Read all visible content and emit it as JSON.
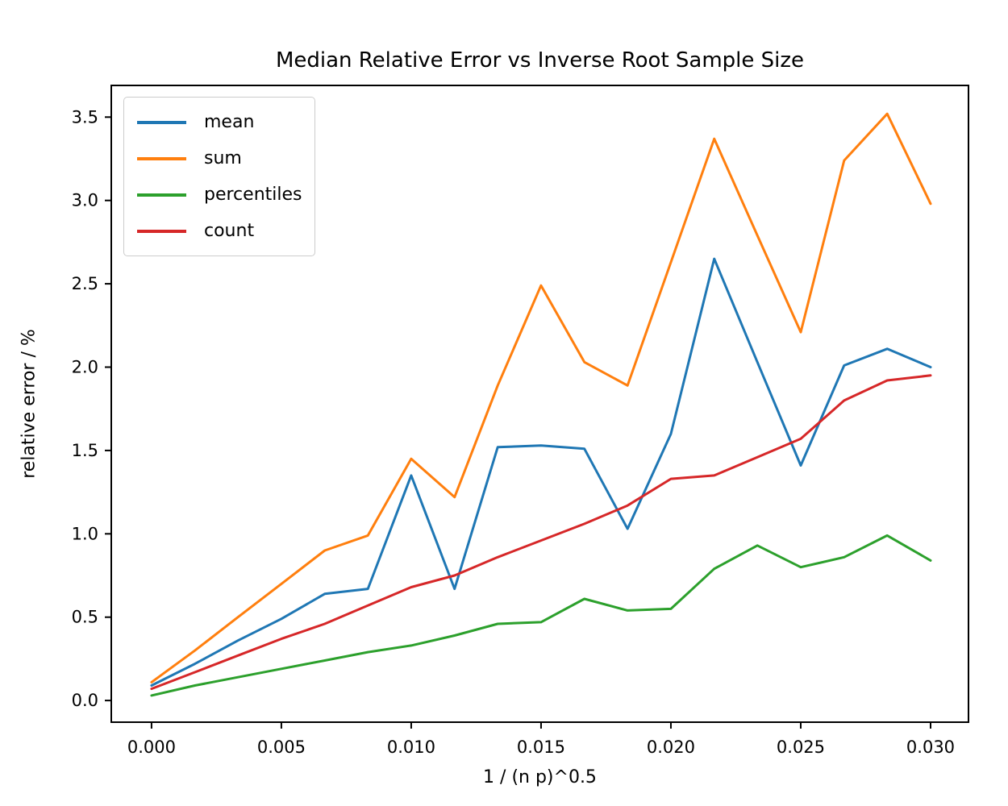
{
  "chart_data": {
    "type": "line",
    "title": "Median Relative Error vs Inverse Root Sample Size",
    "xlabel": "1 / (n p)^0.5",
    "ylabel": "relative error / %",
    "grid": false,
    "legend_position": "upper left",
    "xlim": [
      -0.00155,
      0.03146
    ],
    "ylim": [
      -0.13,
      3.69
    ],
    "xtick_values": [
      0.0,
      0.005,
      0.01,
      0.015,
      0.02,
      0.025,
      0.03
    ],
    "xtick_labels": [
      "0.000",
      "0.005",
      "0.010",
      "0.015",
      "0.020",
      "0.025",
      "0.030"
    ],
    "ytick_values": [
      0.0,
      0.5,
      1.0,
      1.5,
      2.0,
      2.5,
      3.0,
      3.5
    ],
    "ytick_labels": [
      "0.0",
      "0.5",
      "1.0",
      "1.5",
      "2.0",
      "2.5",
      "3.0",
      "3.5"
    ],
    "x": [
      0.0,
      0.00167,
      0.00333,
      0.005,
      0.00667,
      0.00833,
      0.01,
      0.01167,
      0.01333,
      0.015,
      0.01667,
      0.01833,
      0.02,
      0.02167,
      0.02333,
      0.025,
      0.02667,
      0.02833,
      0.03
    ],
    "series": [
      {
        "name": "mean",
        "color": "#1f77b4",
        "values": [
          0.09,
          0.22,
          0.36,
          0.49,
          0.64,
          0.67,
          1.35,
          0.67,
          1.52,
          1.53,
          1.51,
          1.03,
          1.6,
          2.65,
          2.03,
          1.41,
          2.01,
          2.11,
          2.0
        ]
      },
      {
        "name": "sum",
        "color": "#ff7f0e",
        "values": [
          0.11,
          0.3,
          0.5,
          0.7,
          0.9,
          0.99,
          1.45,
          1.22,
          1.89,
          2.49,
          2.03,
          1.89,
          2.63,
          3.37,
          2.79,
          2.21,
          3.24,
          3.52,
          2.98
        ]
      },
      {
        "name": "percentiles",
        "color": "#2ca02c",
        "values": [
          0.03,
          0.09,
          0.14,
          0.19,
          0.24,
          0.29,
          0.33,
          0.39,
          0.46,
          0.47,
          0.61,
          0.54,
          0.55,
          0.79,
          0.93,
          0.8,
          0.86,
          0.99,
          0.84
        ]
      },
      {
        "name": "count",
        "color": "#d62728",
        "values": [
          0.07,
          0.17,
          0.27,
          0.37,
          0.46,
          0.57,
          0.68,
          0.75,
          0.86,
          0.96,
          1.06,
          1.17,
          1.33,
          1.35,
          1.46,
          1.57,
          1.8,
          1.92,
          1.95
        ]
      }
    ]
  }
}
